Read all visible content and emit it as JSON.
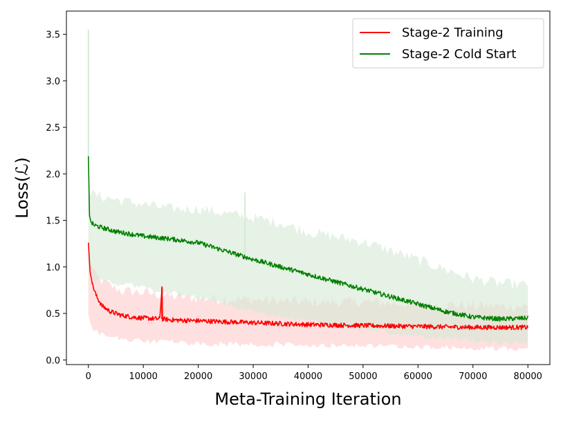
{
  "chart_data": {
    "type": "line",
    "title": "",
    "xlabel": "Meta-Training Iteration",
    "ylabel": "Loss(ℒ)",
    "xlim": [
      -4000,
      84000
    ],
    "ylim": [
      -0.05,
      3.75
    ],
    "xticks": [
      0,
      10000,
      20000,
      30000,
      40000,
      50000,
      60000,
      70000,
      80000
    ],
    "xtick_labels": [
      "0",
      "10000",
      "20000",
      "30000",
      "40000",
      "50000",
      "60000",
      "70000",
      "80000"
    ],
    "yticks": [
      0.0,
      0.5,
      1.0,
      1.5,
      2.0,
      2.5,
      3.0,
      3.5
    ],
    "ytick_labels": [
      "0.0",
      "0.5",
      "1.0",
      "1.5",
      "2.0",
      "2.5",
      "3.0",
      "3.5"
    ],
    "legend_position": "top-right",
    "grid": false,
    "series": [
      {
        "name": "Stage-2 Training",
        "color": "#ff0000",
        "band_color": "#ffcccc",
        "smoothed": {
          "x": [
            0,
            300,
            800,
            1500,
            2500,
            4000,
            6000,
            8000,
            10000,
            13000,
            13400,
            13500,
            15000,
            20000,
            25000,
            30000,
            35000,
            40000,
            45000,
            50000,
            55000,
            60000,
            65000,
            70000,
            75000,
            80000
          ],
          "y": [
            1.26,
            0.95,
            0.8,
            0.68,
            0.58,
            0.52,
            0.48,
            0.46,
            0.45,
            0.44,
            0.78,
            0.44,
            0.43,
            0.42,
            0.41,
            0.4,
            0.39,
            0.38,
            0.375,
            0.37,
            0.365,
            0.36,
            0.355,
            0.35,
            0.35,
            0.35
          ]
        },
        "raw_band": {
          "x": [
            0,
            1000,
            3000,
            6000,
            10000,
            15000,
            20000,
            30000,
            40000,
            50000,
            60000,
            70000,
            80000
          ],
          "upper": [
            1.1,
            0.9,
            0.8,
            0.72,
            0.7,
            0.66,
            0.64,
            0.62,
            0.6,
            0.6,
            0.58,
            0.56,
            0.55
          ],
          "lower": [
            0.5,
            0.35,
            0.28,
            0.25,
            0.23,
            0.22,
            0.2,
            0.2,
            0.19,
            0.18,
            0.17,
            0.16,
            0.15
          ]
        }
      },
      {
        "name": "Stage-2 Cold Start",
        "color": "#008000",
        "band_color": "#d4ead4",
        "smoothed": {
          "x": [
            0,
            200,
            500,
            1000,
            2000,
            5000,
            10000,
            15000,
            20000,
            25000,
            30000,
            35000,
            40000,
            45000,
            50000,
            55000,
            60000,
            65000,
            70000,
            75000,
            80000
          ],
          "y": [
            2.19,
            1.55,
            1.48,
            1.45,
            1.43,
            1.38,
            1.33,
            1.3,
            1.26,
            1.17,
            1.08,
            1.0,
            0.92,
            0.84,
            0.76,
            0.68,
            0.6,
            0.52,
            0.46,
            0.44,
            0.45
          ]
        },
        "raw_band": {
          "x": [
            0,
            1000,
            5000,
            10000,
            15000,
            20000,
            25000,
            30000,
            35000,
            40000,
            45000,
            50000,
            55000,
            60000,
            65000,
            70000,
            75000,
            80000
          ],
          "upper": [
            1.8,
            1.75,
            1.7,
            1.65,
            1.6,
            1.6,
            1.55,
            1.5,
            1.45,
            1.35,
            1.3,
            1.25,
            1.15,
            1.05,
            0.95,
            0.85,
            0.8,
            0.78
          ],
          "lower": [
            1.0,
            0.9,
            0.85,
            0.8,
            0.75,
            0.7,
            0.62,
            0.55,
            0.48,
            0.45,
            0.4,
            0.36,
            0.32,
            0.28,
            0.26,
            0.24,
            0.22,
            0.22
          ]
        },
        "spikes": [
          {
            "x": 0,
            "y": 3.55
          },
          {
            "x": 28500,
            "y": 1.8
          }
        ]
      }
    ]
  }
}
